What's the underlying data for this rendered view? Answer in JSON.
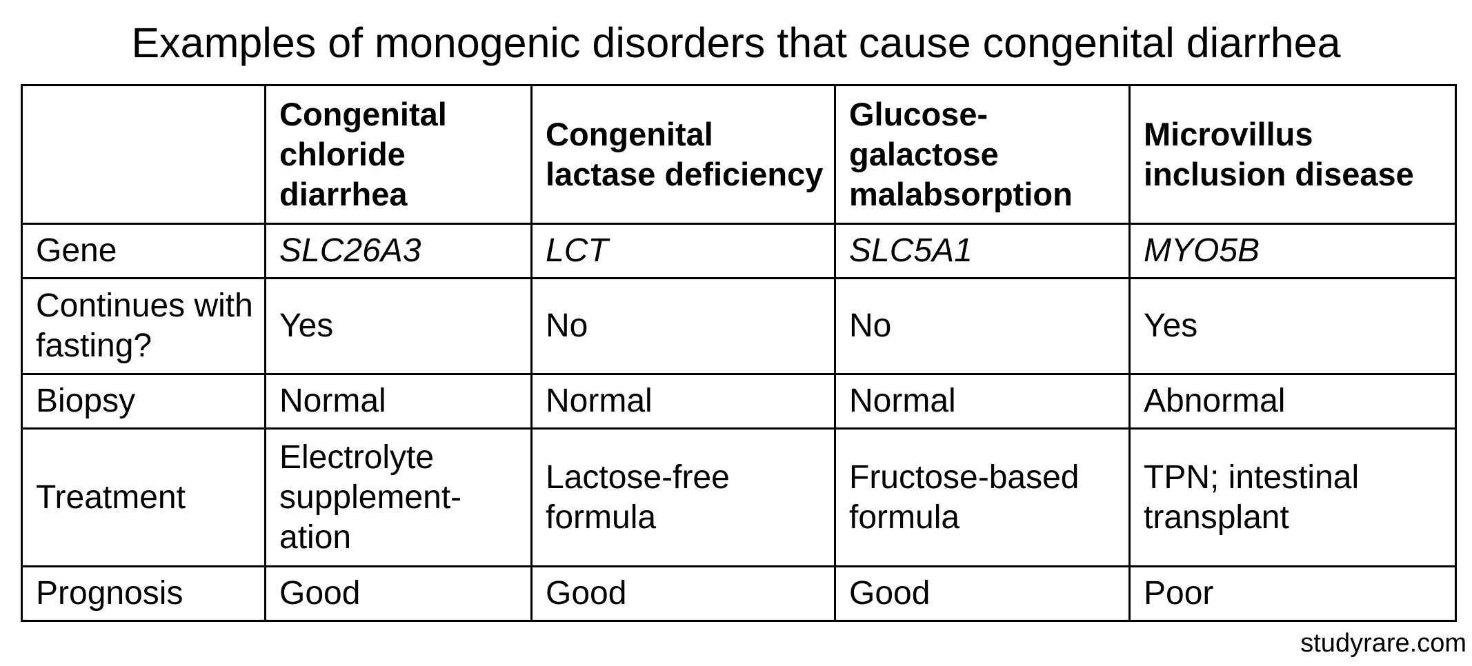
{
  "header": {
    "title": "Examples of monogenic disorders that cause congenital diarrhea"
  },
  "table": {
    "columns": [
      "Congenital chloride diarrhea",
      "Congenital lactase deficiency",
      "Glucose-galactose malabsorption",
      "Microvillus inclusion disease"
    ],
    "rows": [
      [
        "Gene",
        "SLC26A3",
        "LCT",
        "SLC5A1",
        "MYO5B"
      ],
      [
        "Continues with fasting?",
        "Yes",
        "No",
        "No",
        "Yes"
      ],
      [
        "Biopsy",
        "Normal",
        "Normal",
        "Normal",
        "Abnormal"
      ],
      [
        "Treatment",
        "Electrolyte supplement-ation",
        "Lactose-free formula",
        "Fructose-based formula",
        "TPN; intestinal transplant"
      ],
      [
        "Prognosis",
        "Good",
        "Good",
        "Good",
        "Poor"
      ]
    ]
  },
  "footer": {
    "source": "studyrare.com"
  }
}
